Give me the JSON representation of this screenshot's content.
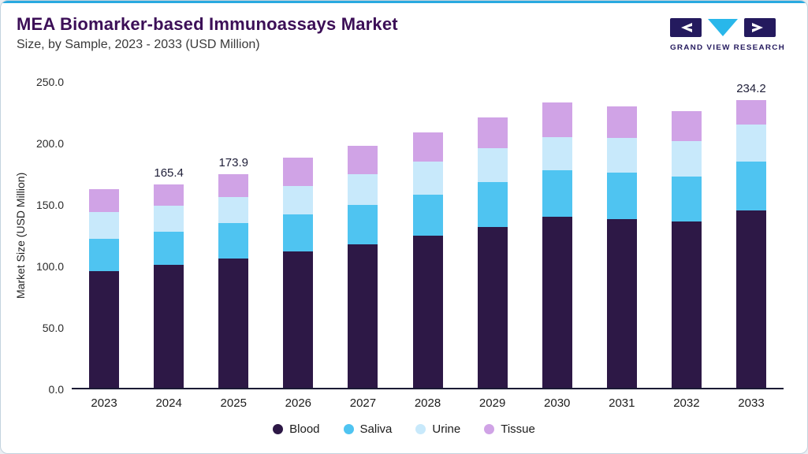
{
  "header": {
    "title": "MEA Biomarker-based Immunoassays Market",
    "subtitle": "Size, by Sample, 2023 - 2033 (USD Million)",
    "logo_text": "GRAND VIEW RESEARCH"
  },
  "brand": {
    "accent_blue": "#29a9e0",
    "logo_navy": "#241a5e",
    "title_purple": "#3c0f57"
  },
  "chart_data": {
    "type": "bar",
    "stacked": true,
    "title": "MEA Biomarker-based Immunoassays Market Size, by Sample, 2023 - 2033 (USD Million)",
    "xlabel": "",
    "ylabel": "Market Size (USD Million)",
    "ylim": [
      0,
      250
    ],
    "yticks": [
      "0.0",
      "50.0",
      "100.0",
      "150.0",
      "200.0",
      "250.0"
    ],
    "grid": false,
    "legend_position": "bottom",
    "categories": [
      "2023",
      "2024",
      "2025",
      "2026",
      "2027",
      "2028",
      "2029",
      "2030",
      "2031",
      "2032",
      "2033"
    ],
    "series": [
      {
        "name": "Blood",
        "color": "#2d1846",
        "values": [
          95,
          100,
          105,
          111,
          117,
          124,
          131,
          139,
          137,
          135,
          144
        ]
      },
      {
        "name": "Saliva",
        "color": "#4fc4f1",
        "values": [
          26,
          27,
          29,
          30,
          32,
          33,
          36,
          38,
          38,
          37,
          40
        ]
      },
      {
        "name": "Urine",
        "color": "#c8e9fb",
        "values": [
          22,
          21,
          21,
          23,
          25,
          27,
          28,
          27,
          28,
          29,
          30
        ]
      },
      {
        "name": "Tissue",
        "color": "#d0a3e6",
        "values": [
          18.5,
          17.4,
          18.9,
          23,
          23,
          24,
          25,
          28,
          26,
          24,
          20.2
        ]
      }
    ],
    "totals": [
      161.5,
      165.4,
      173.9,
      187.0,
      197.0,
      208.0,
      220.0,
      232.0,
      229.0,
      225.0,
      234.2
    ],
    "annotations": {
      "2024": "165.4",
      "2025": "173.9",
      "2033": "234.2"
    }
  }
}
